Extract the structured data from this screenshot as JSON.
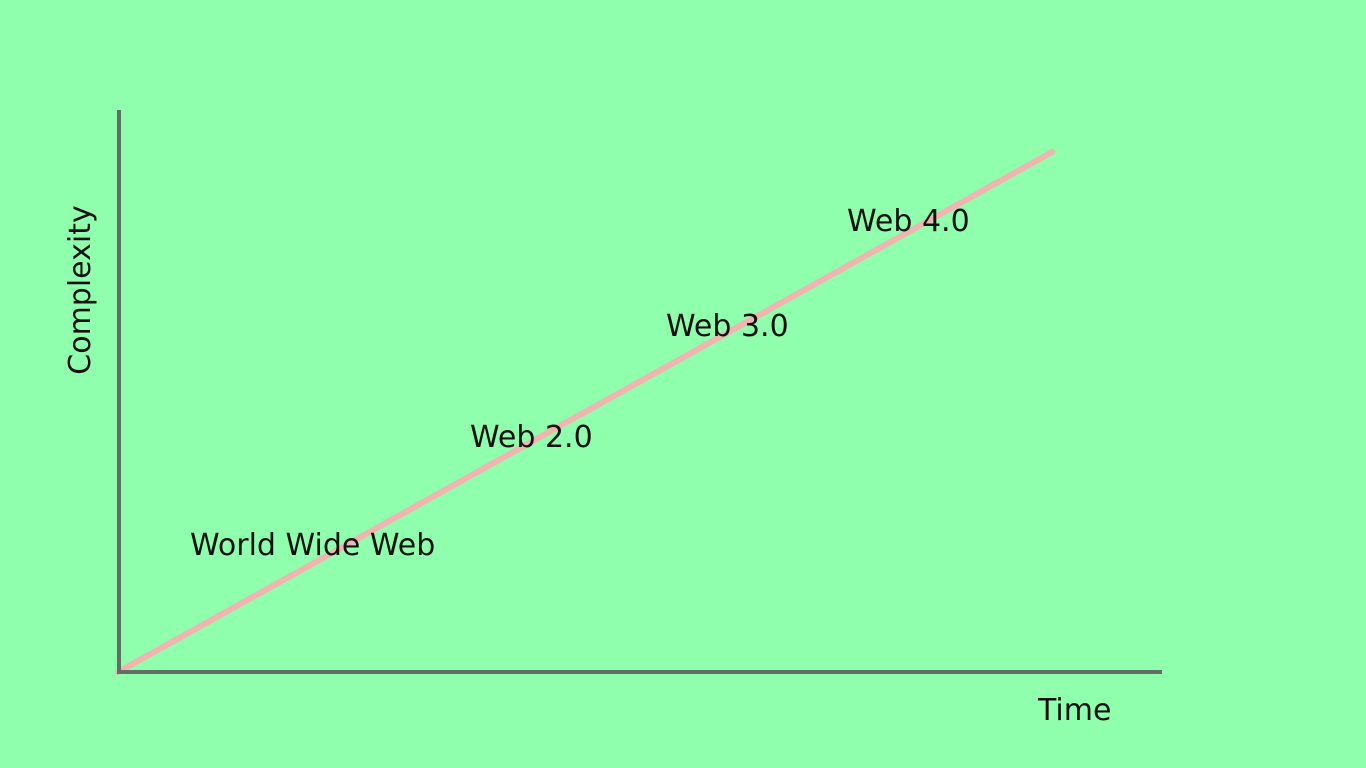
{
  "diagram": {
    "background_color": "#8fffad",
    "axis_color": "#5f6f64",
    "line_color": "#f1b4b0",
    "text_color": "#111111",
    "y_axis_label": "Complexity",
    "x_axis_label": "Time",
    "stages": [
      {
        "label": "World Wide Web"
      },
      {
        "label": "Web 2.0"
      },
      {
        "label": "Web 3.0"
      },
      {
        "label": "Web 4.0"
      }
    ]
  }
}
